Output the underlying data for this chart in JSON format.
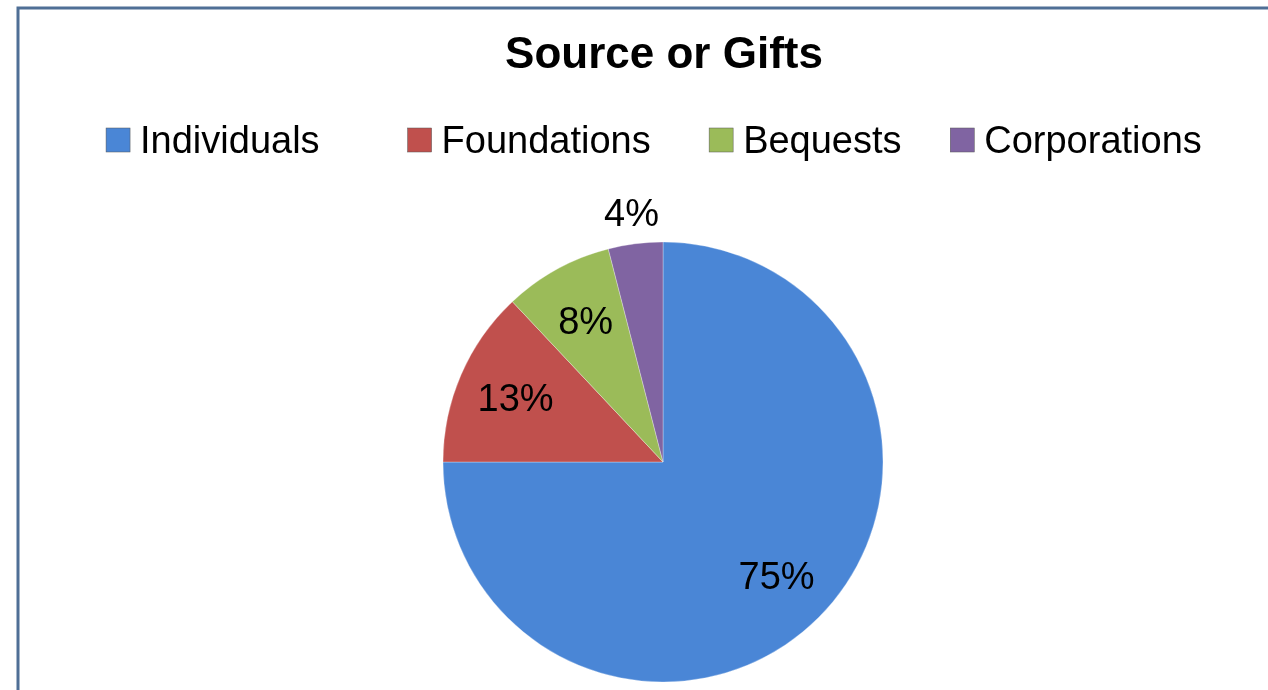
{
  "chart_data": {
    "type": "pie",
    "title": "Source or Gifts",
    "categories": [
      "Individuals",
      "Foundations",
      "Bequests",
      "Corporations"
    ],
    "values": [
      75,
      13,
      8,
      4
    ],
    "colors": [
      "#4a86d6",
      "#c0504d",
      "#9bbb59",
      "#8064a2"
    ],
    "value_labels": [
      "75%",
      "13%",
      "8%",
      "4%"
    ],
    "legend": "top"
  }
}
